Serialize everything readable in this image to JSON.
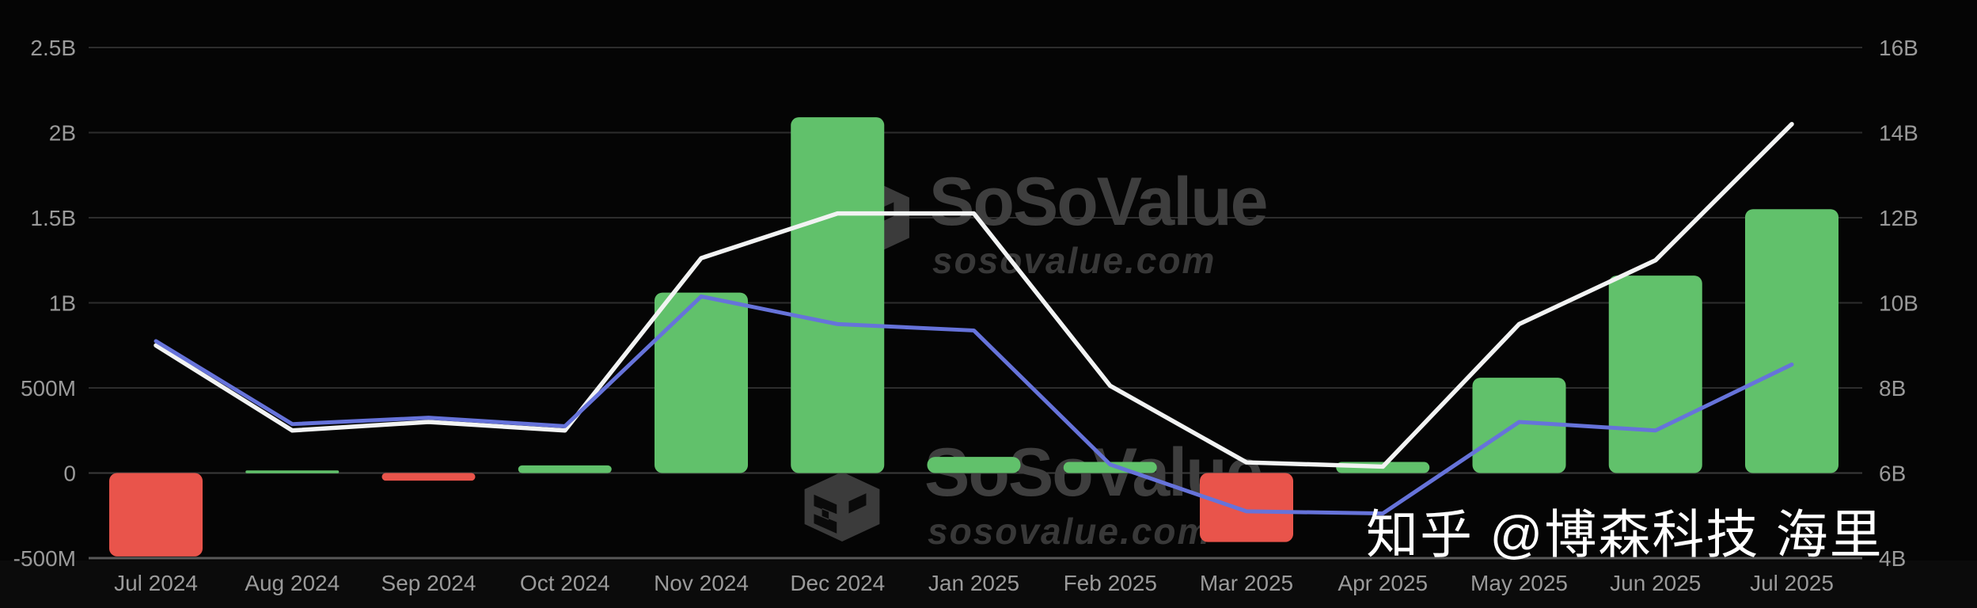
{
  "caption": {
    "text": "知乎 @博森科技 海里",
    "color": "#ffffff"
  },
  "watermark": {
    "brand": "SoSoValue",
    "domain": "sosovalue.com",
    "brand_color": "#3e3e3e",
    "domain_color": "#383838",
    "cube_color": "#3b3b3b"
  },
  "colors": {
    "background": "#050505",
    "bottom_strip": "#0b0b0b",
    "bar_positive": "#61c16b",
    "bar_negative": "#e9544b",
    "line_white": "#f2f3f3",
    "line_blue": "#6673da",
    "grid": "#2d2d2d",
    "zero_line": "#3a3a3a",
    "bottom_line": "#585858",
    "axis_label": "#9a9a9a"
  },
  "chart_data": {
    "type": "bar",
    "subtype": "combo-bar-line",
    "title": "",
    "xlabel": "",
    "ylabel_left": "",
    "ylabel_right": "",
    "grid": true,
    "legend": false,
    "categories": [
      "Jul 2024",
      "Aug 2024",
      "Sep 2024",
      "Oct 2024",
      "Nov 2024",
      "Dec 2024",
      "Jan 2025",
      "Feb 2025",
      "Mar 2025",
      "Apr 2025",
      "May 2025",
      "Jun 2025",
      "Jul 2025"
    ],
    "series": [
      {
        "name": "monthly-net-flow-bars",
        "type": "bar",
        "axis": "left",
        "unit": "USD millions",
        "values": [
          -490,
          15,
          -45,
          45,
          1060,
          2090,
          95,
          65,
          -405,
          65,
          560,
          1160,
          1550
        ]
      },
      {
        "name": "white-line",
        "type": "line",
        "axis": "right",
        "unit": "USD billions",
        "values": [
          9.0,
          7.0,
          7.2,
          7.0,
          11.05,
          12.1,
          12.1,
          8.05,
          6.25,
          6.15,
          9.5,
          11.0,
          14.2
        ]
      },
      {
        "name": "blue-line",
        "type": "line",
        "axis": "right",
        "unit": "USD billions",
        "values": [
          9.1,
          7.15,
          7.3,
          7.1,
          10.15,
          9.5,
          9.35,
          6.2,
          5.1,
          5.05,
          7.2,
          7.0,
          8.55
        ]
      }
    ],
    "left_axis": {
      "tick_labels": [
        "2.5B",
        "2B",
        "1.5B",
        "1B",
        "500M",
        "0",
        "-500M"
      ],
      "tick_values_millions": [
        2500,
        2000,
        1500,
        1000,
        500,
        0,
        -500
      ],
      "range_millions": [
        -500,
        2500
      ]
    },
    "right_axis": {
      "tick_labels": [
        "16B",
        "14B",
        "12B",
        "10B",
        "8B",
        "6B",
        "4B"
      ],
      "tick_values_billions": [
        16,
        14,
        12,
        10,
        8,
        6,
        4
      ],
      "range_billions": [
        4,
        16
      ]
    }
  }
}
